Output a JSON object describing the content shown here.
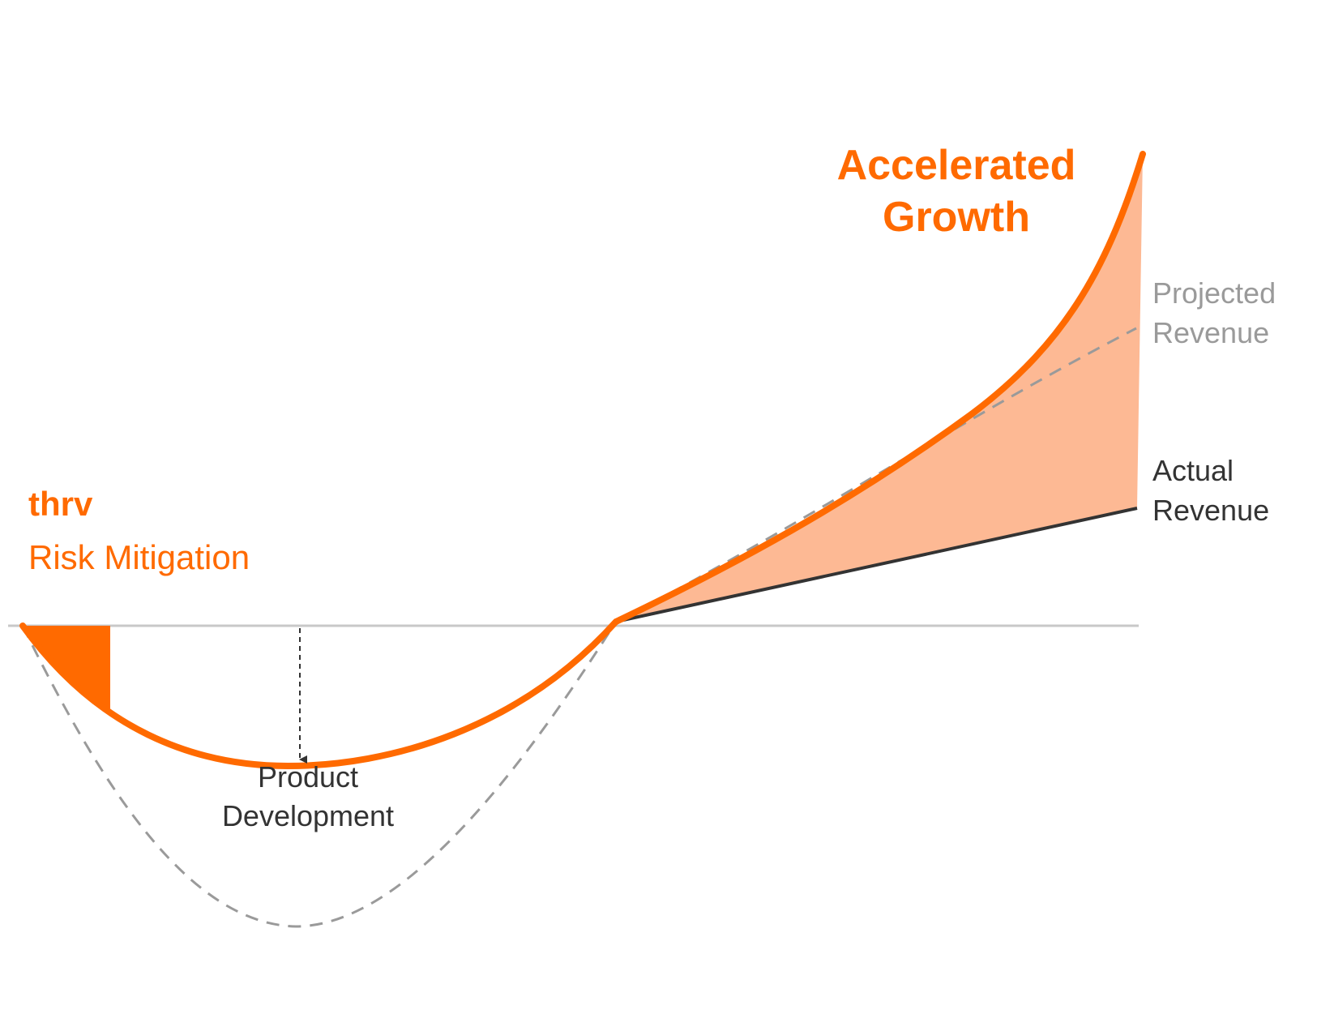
{
  "labels": {
    "accelerated_line1": "Accelerated",
    "accelerated_line2": "Growth",
    "brand": "thrv",
    "risk_mitigation": "Risk Mitigation",
    "projected_line1": "Projected",
    "projected_line2": "Revenue",
    "actual_line1": "Actual",
    "actual_line2": "Revenue",
    "product_line1": "Product",
    "product_line2": "Development"
  },
  "colors": {
    "accent": "#ff6a00",
    "accent_fill": "#fdb994",
    "projected": "#9a9a9a",
    "actual": "#333333",
    "baseline": "#c8c8c8"
  }
}
